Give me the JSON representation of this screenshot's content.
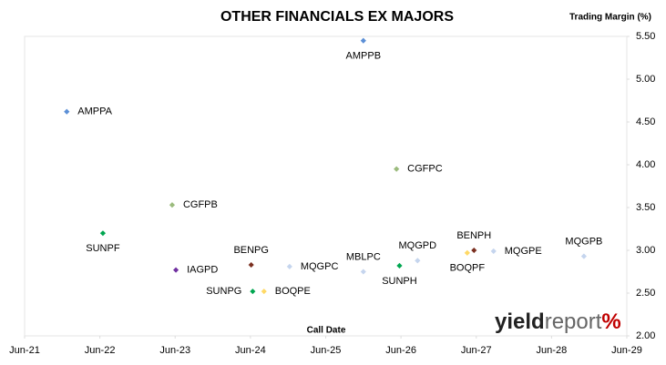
{
  "chart_data": {
    "type": "scatter",
    "title": "OTHER FINANCIALS EX MAJORS",
    "y_axis_label": "Trading Margin (%)",
    "x_axis_label": "Call Date",
    "logo": {
      "bold": "yield",
      "light": "report",
      "mark": "%"
    },
    "labels": [
      "AMPPA",
      "AMPPB",
      "CGFPC",
      "CGFPB",
      "SUNPF",
      "IAGPD",
      "BENPG",
      "MQGPC",
      "SUNPG",
      "BOQPE",
      "MBLPC",
      "SUNPH",
      "MQGPD",
      "BOQPF",
      "BENPH",
      "MQGPE",
      "MQGPB"
    ],
    "x": [
      2022.06,
      2026.0,
      2026.44,
      2023.46,
      2022.54,
      2023.51,
      2024.51,
      2025.02,
      2024.53,
      2024.68,
      2026.0,
      2026.48,
      2026.72,
      2027.38,
      2027.47,
      2027.73,
      2028.93
    ],
    "values": [
      4.62,
      5.45,
      3.95,
      3.53,
      3.2,
      2.77,
      2.83,
      2.81,
      2.52,
      2.52,
      2.75,
      2.82,
      2.88,
      2.97,
      3.0,
      2.99,
      2.93
    ],
    "colors": [
      "#5b8fd6",
      "#5b8fd6",
      "#9bbb7d",
      "#9bbb7d",
      "#00a650",
      "#7030a0",
      "#7b3020",
      "#c5d5ee",
      "#00a650",
      "#ffd966",
      "#c5d5ee",
      "#00a650",
      "#c5d5ee",
      "#ffd966",
      "#7b3020",
      "#c5d5ee",
      "#c5d5ee"
    ],
    "xlim": [
      2021.5,
      2029.5
    ],
    "xticks": [
      {
        "value": 2021.5,
        "label": "Jun-21"
      },
      {
        "value": 2022.5,
        "label": "Jun-22"
      },
      {
        "value": 2023.5,
        "label": "Jun-23"
      },
      {
        "value": 2024.5,
        "label": "Jun-24"
      },
      {
        "value": 2025.5,
        "label": "Jun-25"
      },
      {
        "value": 2026.5,
        "label": "Jun-26"
      },
      {
        "value": 2027.5,
        "label": "Jun-27"
      },
      {
        "value": 2028.5,
        "label": "Jun-28"
      },
      {
        "value": 2029.5,
        "label": "Jun-29"
      }
    ],
    "ylim": [
      2.0,
      5.5
    ],
    "yticks": [
      {
        "value": 2.0,
        "label": "2.00"
      },
      {
        "value": 2.5,
        "label": "2.50"
      },
      {
        "value": 3.0,
        "label": "3.00"
      },
      {
        "value": 3.5,
        "label": "3.50"
      },
      {
        "value": 4.0,
        "label": "4.00"
      },
      {
        "value": 4.5,
        "label": "4.50"
      },
      {
        "value": 5.0,
        "label": "5.00"
      },
      {
        "value": 5.5,
        "label": "5.50"
      }
    ]
  }
}
